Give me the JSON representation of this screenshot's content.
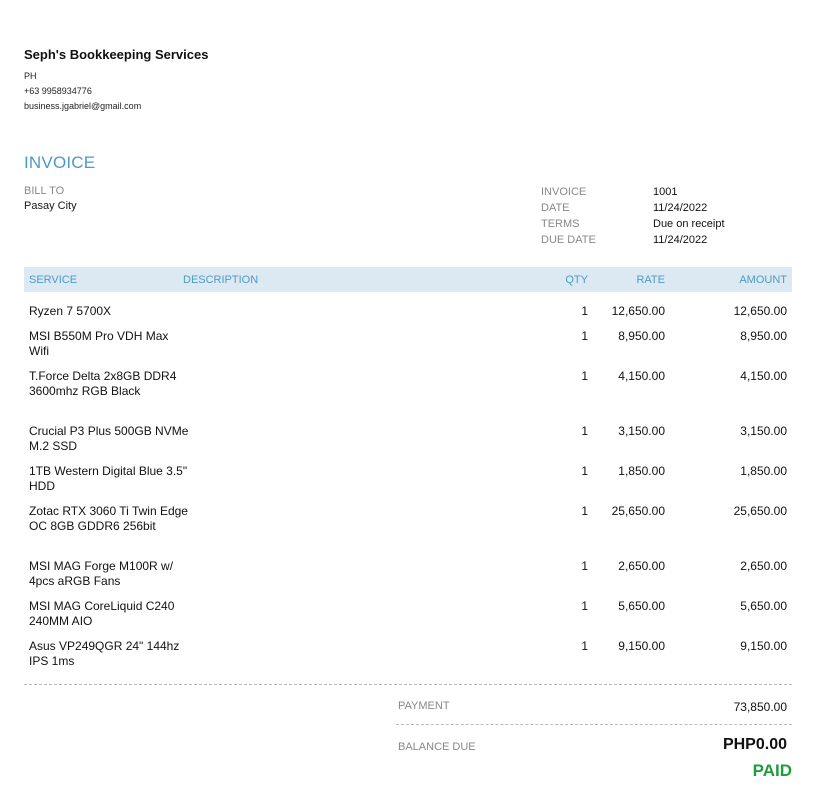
{
  "company": {
    "name": "Seph's Bookkeeping Services",
    "country": "PH",
    "phone": "+63 9958934776",
    "email": "business.jgabriel@gmail.com"
  },
  "invoice_title": "INVOICE",
  "bill_to": {
    "label": "BILL TO",
    "value": "Pasay City"
  },
  "meta": [
    {
      "label": "INVOICE",
      "value": "1001"
    },
    {
      "label": "DATE",
      "value": "11/24/2022"
    },
    {
      "label": "TERMS",
      "value": "Due on receipt"
    },
    {
      "label": "DUE DATE",
      "value": "11/24/2022"
    }
  ],
  "columns": {
    "service": "SERVICE",
    "description": "DESCRIPTION",
    "qty": "QTY",
    "rate": "RATE",
    "amount": "AMOUNT"
  },
  "items": [
    {
      "service": "Ryzen 7 5700X",
      "qty": "1",
      "rate": "12,650.00",
      "amount": "12,650.00"
    },
    {
      "service": "MSI B550M Pro VDH Max Wifi",
      "qty": "1",
      "rate": "8,950.00",
      "amount": "8,950.00"
    },
    {
      "service": "T.Force Delta 2x8GB DDR4 3600mhz RGB Black",
      "qty": "1",
      "rate": "4,150.00",
      "amount": "4,150.00"
    },
    {
      "service": "Crucial P3 Plus 500GB NVMe M.2 SSD",
      "qty": "1",
      "rate": "3,150.00",
      "amount": "3,150.00"
    },
    {
      "service": "1TB Western Digital Blue 3.5\" HDD",
      "qty": "1",
      "rate": "1,850.00",
      "amount": "1,850.00"
    },
    {
      "service": "Zotac RTX 3060 Ti Twin Edge OC 8GB GDDR6 256bit",
      "qty": "1",
      "rate": "25,650.00",
      "amount": "25,650.00"
    },
    {
      "service": "MSI MAG Forge M100R w/ 4pcs aRGB Fans",
      "qty": "1",
      "rate": "2,650.00",
      "amount": "2,650.00"
    },
    {
      "service": "MSI MAG CoreLiquid C240 240MM AIO",
      "qty": "1",
      "rate": "5,650.00",
      "amount": "5,650.00"
    },
    {
      "service": "Asus VP249QGR 24\" 144hz IPS 1ms",
      "qty": "1",
      "rate": "9,150.00",
      "amount": "9,150.00"
    }
  ],
  "totals": {
    "payment_label": "PAYMENT",
    "payment_value": "73,850.00",
    "balance_label": "BALANCE DUE",
    "balance_value": "PHP0.00",
    "status": "PAID",
    "status_color": "#1e9e3a"
  }
}
